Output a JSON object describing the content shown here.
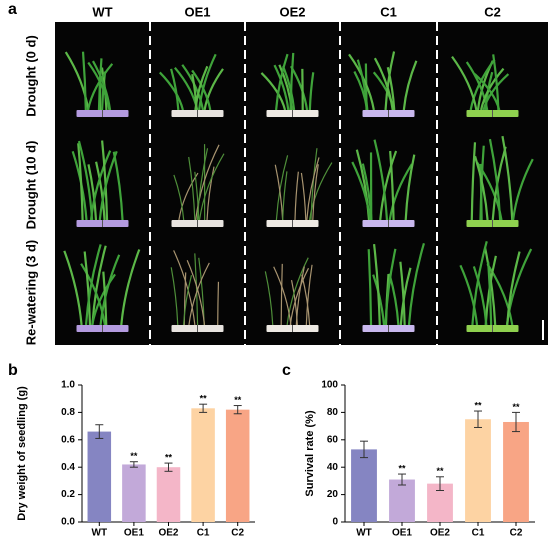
{
  "panel_a": {
    "label": "a",
    "columns": [
      "WT",
      "OE1",
      "OE2",
      "C1",
      "C2"
    ],
    "rows": [
      "Drought (0 d)",
      "Drought (10 d)",
      "Re-watering (3 d)"
    ]
  },
  "chart_data": [
    {
      "type": "bar",
      "label": "b",
      "ylabel": "Dry weight of seedling (g)",
      "categories": [
        "WT",
        "OE1",
        "OE2",
        "C1",
        "C2"
      ],
      "values": [
        0.66,
        0.42,
        0.4,
        0.83,
        0.82
      ],
      "errors": [
        0.05,
        0.02,
        0.03,
        0.03,
        0.03
      ],
      "annotations": [
        null,
        "**",
        "**",
        "**",
        "**"
      ],
      "colors": [
        "#8585c2",
        "#c2a9d9",
        "#f4b6c8",
        "#fdd3a3",
        "#f8a585"
      ],
      "ylim": [
        0,
        1.0
      ],
      "yticks": [
        {
          "value": 0,
          "label": "0.0"
        },
        0.2,
        0.4,
        0.6,
        0.8,
        {
          "value": 1.0,
          "label": "1.0"
        }
      ]
    },
    {
      "type": "bar",
      "label": "c",
      "ylabel": "Survival rate (%)",
      "categories": [
        "WT",
        "OE1",
        "OE2",
        "C1",
        "C2"
      ],
      "values": [
        53,
        31,
        28,
        75,
        73
      ],
      "errors": [
        6,
        4,
        5,
        6,
        7
      ],
      "annotations": [
        null,
        "**",
        "**",
        "**",
        "**"
      ],
      "colors": [
        "#8585c2",
        "#c2a9d9",
        "#f4b6c8",
        "#fdd3a3",
        "#f8a585"
      ],
      "ylim": [
        0,
        100
      ],
      "yticks": [
        0,
        20,
        40,
        60,
        80,
        100
      ]
    }
  ]
}
